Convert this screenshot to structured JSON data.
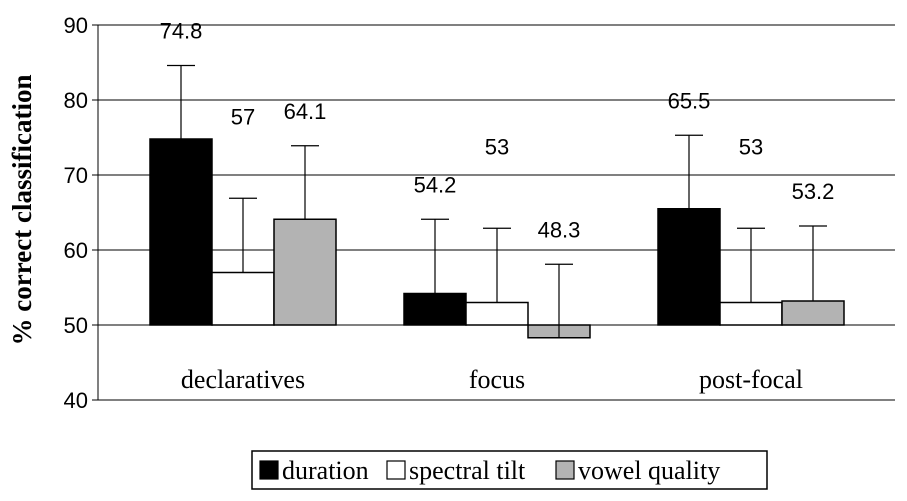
{
  "chart_data": {
    "type": "bar",
    "title": "",
    "xlabel": "",
    "ylabel": "% correct classification",
    "ylim": [
      40,
      90
    ],
    "yticks": [
      40,
      50,
      60,
      70,
      80,
      90
    ],
    "baseline": 50,
    "grid": "horizontal",
    "legend_position": "bottom",
    "categories": [
      "declaratives",
      "focus",
      "post-focal"
    ],
    "series": [
      {
        "name": "duration",
        "color": "#000000",
        "values": [
          74.8,
          54.2,
          65.5
        ],
        "labels": [
          "74.8",
          "54.2",
          "65.5"
        ],
        "error_upper": [
          84.6,
          64.1,
          75.3
        ]
      },
      {
        "name": "spectral tilt",
        "color": "#ffffff",
        "values": [
          57,
          53,
          53
        ],
        "labels": [
          "57",
          "53",
          "53"
        ],
        "error_upper": [
          66.9,
          62.9,
          62.9
        ]
      },
      {
        "name": "vowel quality",
        "color": "#b3b3b3",
        "values": [
          64.1,
          48.3,
          53.2
        ],
        "labels": [
          "64.1",
          "48.3",
          "53.2"
        ],
        "error_upper": [
          73.9,
          58.1,
          63.2
        ]
      }
    ]
  }
}
